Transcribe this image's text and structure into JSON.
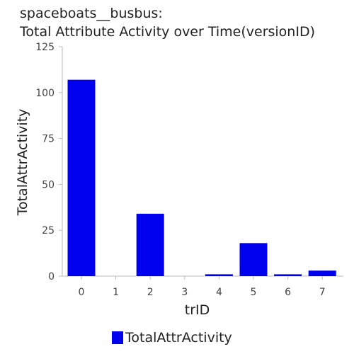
{
  "chart_data": {
    "type": "bar",
    "title": [
      "spaceboats__busbus:",
      "Total Attribute Activity over Time(versionID)"
    ],
    "xlabel": "trID",
    "ylabel": "TotalAttrActivity",
    "categories": [
      "0",
      "1",
      "2",
      "3",
      "4",
      "5",
      "6",
      "7"
    ],
    "series": [
      {
        "name": "TotalAttrActivity",
        "values": [
          107,
          0,
          34,
          0,
          1,
          18,
          1,
          3
        ],
        "color": "#0000ee"
      }
    ],
    "ylim": [
      0,
      125
    ],
    "yticks": [
      "0",
      "25",
      "50",
      "75",
      "100",
      "125"
    ],
    "grid": false,
    "legend": "bottom"
  }
}
